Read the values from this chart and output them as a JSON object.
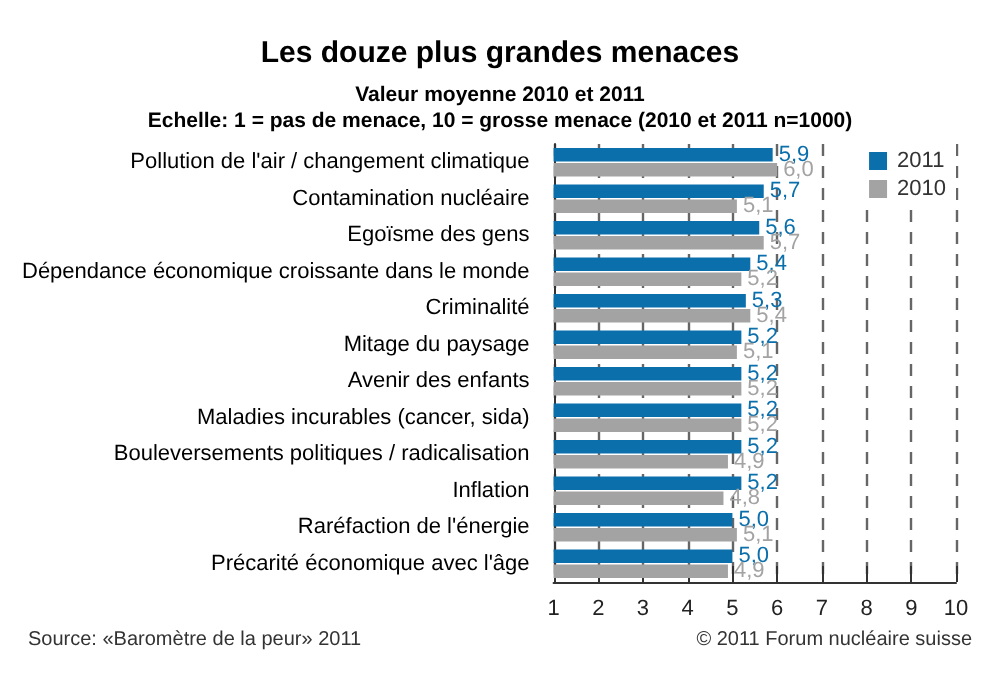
{
  "chart_data": {
    "type": "bar",
    "orientation": "horizontal",
    "title": "Les douze plus grandes menaces",
    "subtitle": "Valeur moyenne 2010 et 2011\nEchelle: 1 = pas de menace, 10 = grosse menace (2010 et 2011 n=1000)",
    "categories": [
      "Pollution de l'air / changement climatique",
      "Contamination nucléaire",
      "Egoïsme des gens",
      "Dépendance économique croissante dans le monde",
      "Criminalité",
      "Mitage du paysage",
      "Avenir des enfants",
      "Maladies incurables (cancer, sida)",
      "Bouleversements politiques / radicalisation",
      "Inflation",
      "Raréfaction de l'énergie",
      "Précarité économique avec l'âge"
    ],
    "series": [
      {
        "name": "2011",
        "color": "#0a6fab",
        "values": [
          5.9,
          5.7,
          5.6,
          5.4,
          5.3,
          5.2,
          5.2,
          5.2,
          5.2,
          5.2,
          5.0,
          5.0
        ],
        "value_labels": [
          "5,9",
          "5,7",
          "5,6",
          "5,4",
          "5,3",
          "5,2",
          "5,2",
          "5,2",
          "5,2",
          "5,2",
          "5,0",
          "5,0"
        ]
      },
      {
        "name": "2010",
        "color": "#a3a3a3",
        "values": [
          6.0,
          5.1,
          5.7,
          5.2,
          5.4,
          5.1,
          5.2,
          5.2,
          4.9,
          4.8,
          5.1,
          4.9
        ],
        "value_labels": [
          "6,0",
          "5,1",
          "5,7",
          "5,2",
          "5,4",
          "5,1",
          "5,2",
          "5,2",
          "4,9",
          "4,8",
          "5,1",
          "4,9"
        ]
      }
    ],
    "xlim": [
      1,
      10
    ],
    "xticks": [
      1,
      2,
      3,
      4,
      5,
      6,
      7,
      8,
      9,
      10
    ],
    "grid": "x",
    "legend": "top right",
    "annotations": [
      "Source: «Baromètre de la peur» 2011",
      "© 2011 Forum nucléaire suisse"
    ]
  }
}
